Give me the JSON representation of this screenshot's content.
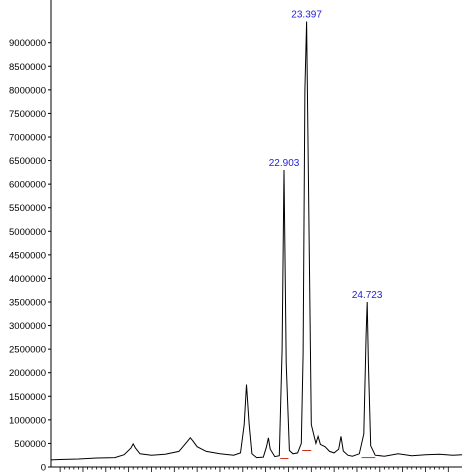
{
  "chart_data": {
    "type": "line",
    "title": "",
    "xlabel": "",
    "ylabel": "",
    "ylim": [
      0,
      9800000
    ],
    "xlim": [
      17.8,
      26.8
    ],
    "grid": false,
    "legend": "none",
    "line_color": "#000000",
    "peak_label_color": "#1f1fd6",
    "baseline_mark_color": "#d0301e",
    "y_ticks": [
      0,
      500000,
      1000000,
      1500000,
      2000000,
      2500000,
      3000000,
      3500000,
      4000000,
      4500000,
      5000000,
      5500000,
      6000000,
      6500000,
      7000000,
      7500000,
      8000000,
      8500000,
      9000000
    ],
    "y_tick_labels": [
      "0",
      "500000",
      "1000000",
      "1500000",
      "2000000",
      "2500000",
      "3000000",
      "3500000",
      "4000000",
      "4500000",
      "5000000",
      "5500000",
      "6000000",
      "6500000",
      "7000000",
      "7500000",
      "8000000",
      "8500000",
      "9000000"
    ],
    "peak_labels": [
      {
        "x": 22.903,
        "y": 6300000,
        "text": "22.903"
      },
      {
        "x": 23.397,
        "y": 9450000,
        "text": "23.397"
      },
      {
        "x": 24.723,
        "y": 3500000,
        "text": "24.723"
      }
    ],
    "x": [
      17.8,
      18.0,
      18.4,
      18.8,
      19.2,
      19.4,
      19.55,
      19.6,
      19.65,
      19.75,
      20.0,
      20.3,
      20.6,
      20.75,
      20.85,
      20.9,
      21.0,
      21.2,
      21.5,
      21.8,
      21.95,
      22.03,
      22.08,
      22.14,
      22.2,
      22.3,
      22.45,
      22.52,
      22.56,
      22.6,
      22.7,
      22.8,
      22.86,
      22.903,
      22.95,
      23.02,
      23.1,
      23.2,
      23.28,
      23.32,
      23.36,
      23.397,
      23.44,
      23.5,
      23.6,
      23.65,
      23.7,
      23.8,
      23.9,
      24.0,
      24.1,
      24.15,
      24.2,
      24.3,
      24.4,
      24.55,
      24.65,
      24.7,
      24.723,
      24.75,
      24.8,
      24.9,
      25.1,
      25.4,
      25.7,
      26.0,
      26.3,
      26.6,
      26.8
    ],
    "values": [
      150000,
      160000,
      170000,
      190000,
      200000,
      260000,
      400000,
      490000,
      400000,
      280000,
      250000,
      270000,
      330000,
      500000,
      620000,
      560000,
      430000,
      330000,
      280000,
      250000,
      300000,
      900000,
      1750000,
      900000,
      280000,
      200000,
      210000,
      430000,
      620000,
      380000,
      220000,
      240000,
      2500000,
      6300000,
      2200000,
      350000,
      280000,
      300000,
      500000,
      2400000,
      8000000,
      9450000,
      5800000,
      900000,
      500000,
      650000,
      480000,
      430000,
      330000,
      300000,
      380000,
      650000,
      340000,
      250000,
      230000,
      280000,
      700000,
      2800000,
      3500000,
      2200000,
      450000,
      250000,
      230000,
      280000,
      240000,
      260000,
      270000,
      250000,
      260000
    ],
    "baseline_marks": [
      {
        "x1": 22.82,
        "x2": 23.0,
        "y1": 180000,
        "y2": 180000
      },
      {
        "x1": 23.3,
        "x2": 23.5,
        "y1": 350000,
        "y2": 350000
      },
      {
        "x1": 24.6,
        "x2": 24.9,
        "y1": 200000,
        "y2": 200000
      }
    ]
  }
}
